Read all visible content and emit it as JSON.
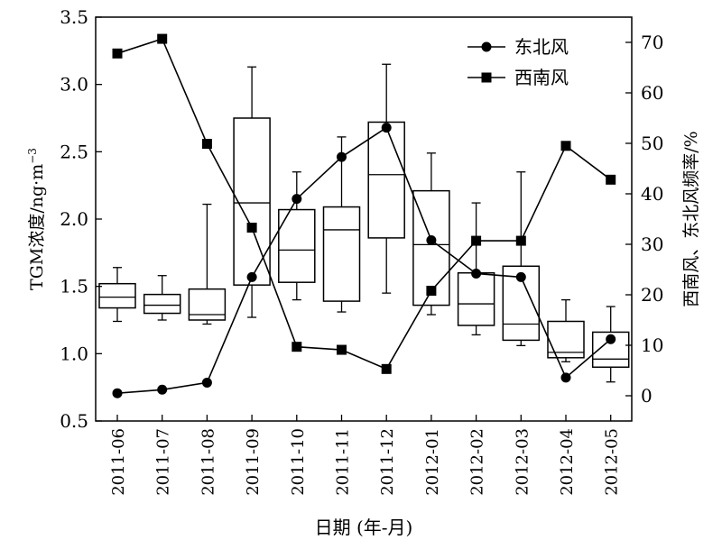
{
  "chart_data": {
    "type": "box+line",
    "categories": [
      "2011-06",
      "2011-07",
      "2011-08",
      "2011-09",
      "2011-10",
      "2011-11",
      "2011-12",
      "2012-01",
      "2012-02",
      "2012-03",
      "2012-04",
      "2012-05"
    ],
    "xlabel": "日期 (年-月)",
    "ylabel_left_main": "TGM浓度/ng·m",
    "ylabel_left_sup": "−3",
    "ylabel_right": "西南风、东北风频率/%",
    "ylim_left": [
      0.5,
      3.5
    ],
    "yticks_left": [
      "0.5",
      "1.0",
      "1.5",
      "2.0",
      "2.5",
      "3.0",
      "3.5"
    ],
    "ylim_right": [
      -5,
      75
    ],
    "yticks_right": [
      "0",
      "10",
      "20",
      "30",
      "40",
      "50",
      "60",
      "70"
    ],
    "boxes": [
      {
        "min": 1.24,
        "q1": 1.34,
        "median": 1.42,
        "q3": 1.52,
        "max": 1.64
      },
      {
        "min": 1.25,
        "q1": 1.3,
        "median": 1.36,
        "q3": 1.44,
        "max": 1.58
      },
      {
        "min": 1.22,
        "q1": 1.25,
        "median": 1.29,
        "q3": 1.48,
        "max": 2.11
      },
      {
        "min": 1.27,
        "q1": 1.51,
        "median": 2.12,
        "q3": 2.75,
        "max": 3.13
      },
      {
        "min": 1.4,
        "q1": 1.53,
        "median": 1.77,
        "q3": 2.07,
        "max": 2.35
      },
      {
        "min": 1.31,
        "q1": 1.39,
        "median": 1.92,
        "q3": 2.09,
        "max": 2.61
      },
      {
        "min": 1.45,
        "q1": 1.86,
        "median": 2.33,
        "q3": 2.72,
        "max": 3.15
      },
      {
        "min": 1.29,
        "q1": 1.36,
        "median": 1.81,
        "q3": 2.21,
        "max": 2.49
      },
      {
        "min": 1.14,
        "q1": 1.21,
        "median": 1.37,
        "q3": 1.6,
        "max": 2.12
      },
      {
        "min": 1.06,
        "q1": 1.1,
        "median": 1.22,
        "q3": 1.65,
        "max": 2.35
      },
      {
        "min": 0.94,
        "q1": 0.97,
        "median": 1.01,
        "q3": 1.24,
        "max": 1.4
      },
      {
        "min": 0.79,
        "q1": 0.9,
        "median": 0.96,
        "q3": 1.16,
        "max": 1.35
      }
    ],
    "series": [
      {
        "name": "东北风",
        "marker": "circle",
        "axis": "right",
        "values": [
          0.5,
          1.2,
          2.6,
          23.5,
          39.0,
          47.3,
          53.1,
          30.8,
          24.2,
          23.5,
          3.6,
          11.2
        ]
      },
      {
        "name": "西南风",
        "marker": "square",
        "axis": "right",
        "values": [
          67.8,
          70.7,
          49.9,
          33.3,
          9.7,
          9.1,
          5.3,
          20.8,
          30.7,
          30.7,
          49.5,
          42.8
        ]
      }
    ]
  }
}
